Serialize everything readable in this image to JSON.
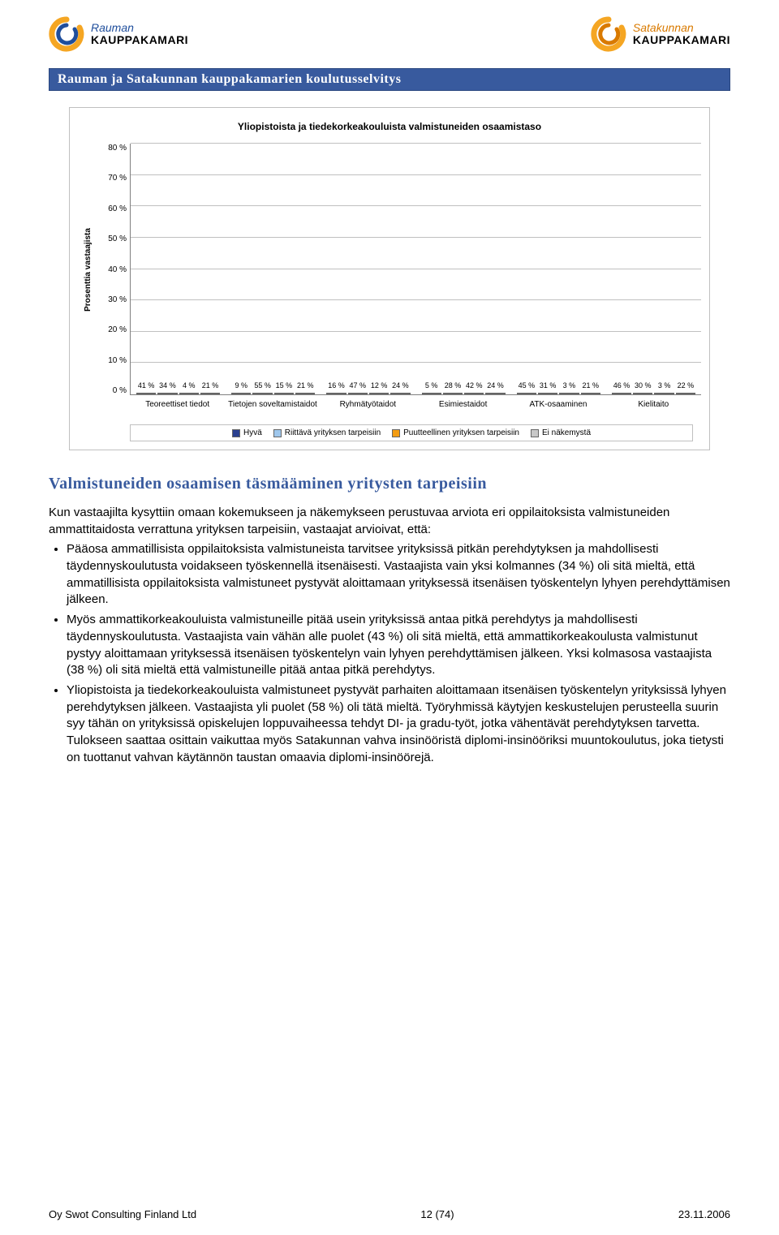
{
  "logos": {
    "left": {
      "top": "Rauman",
      "bottom": "KAUPPAKAMARI",
      "c_outer": "#f5a623",
      "c_inner": "#1f4e9c"
    },
    "right": {
      "top": "Satakunnan",
      "bottom": "KAUPPAKAMARI",
      "c_outer": "#f5a623",
      "c_inner": "#d97a00"
    }
  },
  "title_bar": "Rauman ja Satakunnan kauppakamarien koulutusselvitys",
  "chart": {
    "title": "Yliopistoista ja tiedekorkeakouluista valmistuneiden osaamistaso",
    "y_label": "Prosenttia vastaajista",
    "y_max": 80,
    "y_step": 10,
    "y_ticks": [
      "80 %",
      "70 %",
      "60 %",
      "50 %",
      "40 %",
      "30 %",
      "20 %",
      "10 %",
      "0 %"
    ],
    "categories": [
      {
        "label": "Teoreettiset tiedot",
        "values": [
          41,
          34,
          4,
          21
        ]
      },
      {
        "label": "Tietojen soveltamistaidot",
        "values": [
          9,
          55,
          15,
          21
        ]
      },
      {
        "label": "Ryhmätyötaidot",
        "values": [
          16,
          47,
          12,
          24
        ]
      },
      {
        "label": "Esimiestaidot",
        "values": [
          5,
          28,
          42,
          24
        ]
      },
      {
        "label": "ATK-osaaminen",
        "values": [
          45,
          31,
          3,
          21
        ]
      },
      {
        "label": "Kielitaito",
        "values": [
          46,
          30,
          3,
          22
        ]
      }
    ],
    "series": [
      {
        "name": "Hyvä",
        "color": "#2a3f8f"
      },
      {
        "name": "Riittävä yrityksen tarpeisiin",
        "color": "#9fc7ec"
      },
      {
        "name": "Puutteellinen yrityksen tarpeisiin",
        "color": "#f39c12"
      },
      {
        "name": "Ei näkemystä",
        "color": "#c8c8c8"
      }
    ],
    "grid_color": "#c0c0c0",
    "border_color": "#808080",
    "background": "#ffffff"
  },
  "section_heading": "Valmistuneiden osaamisen täsmääminen yritysten tarpeisiin",
  "intro_paragraph": "Kun vastaajilta kysyttiin omaan kokemukseen ja näkemykseen perustuvaa arviota eri oppilaitoksista valmistuneiden ammattitaidosta verrattuna yrityksen tarpeisiin, vastaajat arvioivat, että:",
  "bullets": [
    "Pääosa ammatillisista oppilaitoksista valmistuneista tarvitsee yrityksissä pitkän perehdytyksen ja mahdollisesti täydennyskoulutusta voidakseen työskennellä itsenäisesti. Vastaajista vain yksi kolmannes (34 %) oli sitä mieltä, että ammatillisista oppilaitoksista valmistuneet pystyvät aloittamaan yrityksessä itsenäisen työskentelyn lyhyen perehdyttämisen jälkeen.",
    "Myös ammattikorkeakouluista valmistuneille pitää usein yrityksissä antaa pitkä perehdytys ja mahdollisesti täydennyskoulutusta. Vastaajista vain vähän alle puolet (43 %) oli sitä mieltä, että ammattikorkeakoulusta valmistunut pystyy aloittamaan yrityksessä itsenäisen työskentelyn vain lyhyen perehdyttämisen jälkeen. Yksi kolmasosa vastaajista (38 %) oli sitä mieltä että valmistuneille pitää antaa pitkä perehdytys.",
    "Yliopistoista ja tiedekorkeakouluista valmistuneet pystyvät parhaiten aloittamaan itsenäisen työskentelyn yrityksissä lyhyen perehdytyksen jälkeen. Vastaajista yli puolet (58 %) oli tätä mieltä. Työryhmissä käytyjen keskustelujen perusteella suurin syy tähän on yrityksissä opiskelujen loppuvaiheessa tehdyt DI- ja gradu-työt, jotka vähentävät perehdytyksen tarvetta. Tulokseen saattaa osittain vaikuttaa myös Satakunnan vahva insinööristä diplomi-insinööriksi muuntokoulutus, joka tietysti on tuottanut vahvan käytännön taustan omaavia diplomi-insinöörejä."
  ],
  "footer": {
    "left": "Oy Swot Consulting Finland Ltd",
    "center": "12 (74)",
    "right": "23.11.2006"
  }
}
